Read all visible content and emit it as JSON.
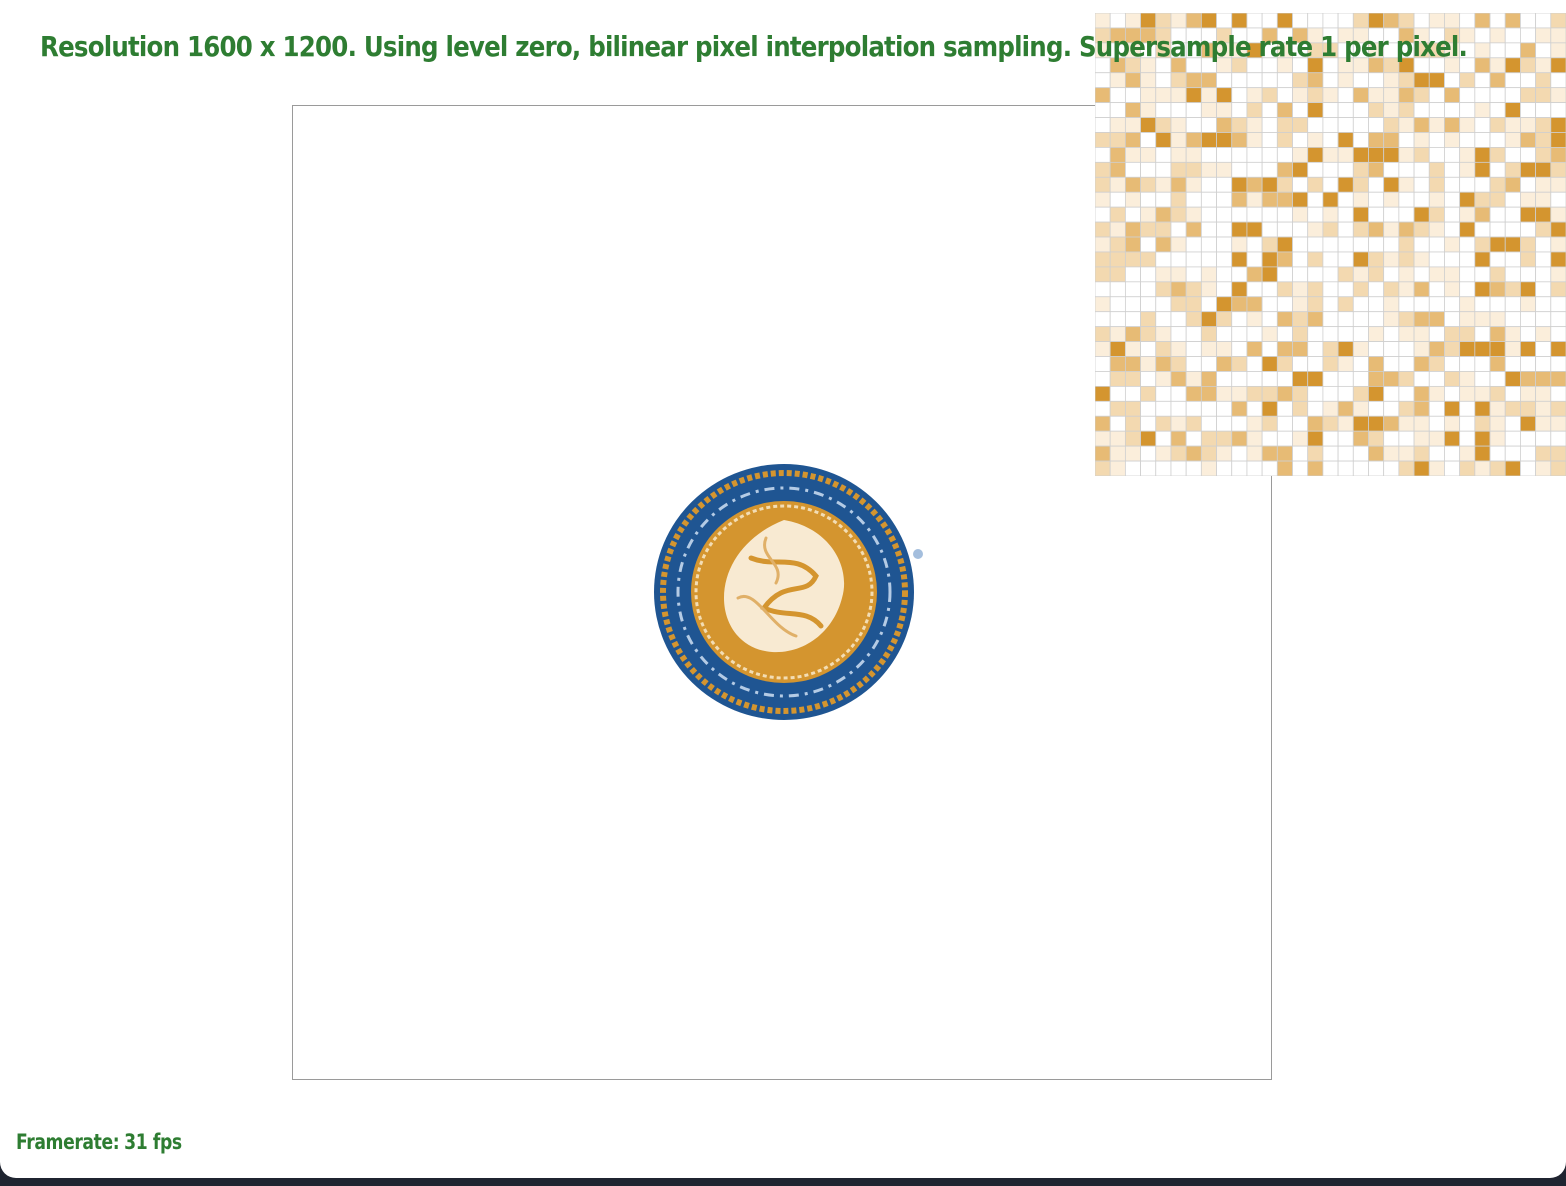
{
  "status": {
    "resolution_text": "Resolution 1600 x 1200. Using level zero, bilinear pixel interpolation sampling. Supersample rate 1 per pixel.",
    "framerate_label": "Framerate:",
    "framerate_value": "31 fps"
  },
  "colors": {
    "status_text": "#2e7d32",
    "seal_blue": "#1f5592",
    "seal_gold": "#d4952f",
    "seal_cream": "#f8ead2",
    "zoom_grid_line": "#cfcfcf",
    "zoom_fill": "#d4952f"
  },
  "zoom_view": {
    "columns": 31,
    "rows": 31,
    "cell_intensity": "0-4 tan shades derived from texture sample",
    "seed": 7
  },
  "seal": {
    "description_icon": "university-seal-icon"
  }
}
